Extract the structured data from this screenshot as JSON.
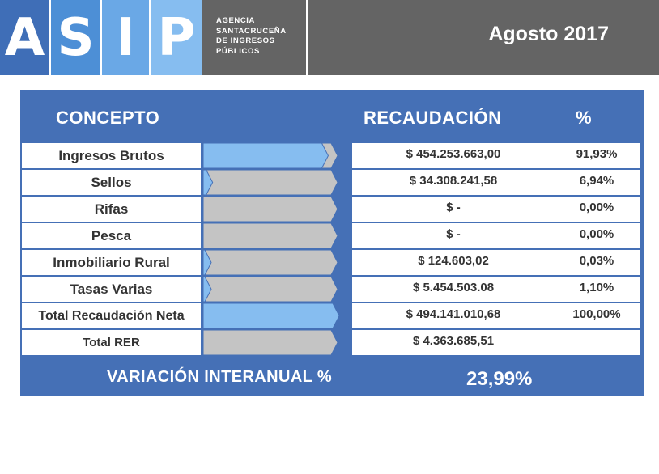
{
  "header": {
    "logo_letters": [
      "A",
      "S",
      "I",
      "P"
    ],
    "logo_colors": [
      "#3f6eb7",
      "#4d8fd6",
      "#6aa8e6",
      "#86bdf0"
    ],
    "agency_lines": [
      "AGENCIA",
      "SANTACRUCEÑA",
      "DE INGRESOS",
      "PÚBLICOS"
    ],
    "period": "Agosto 2017"
  },
  "colors": {
    "panel_blue": "#4570b6",
    "bar_blue": "#86bdf0",
    "bar_gray": "#c4c4c4",
    "header_gray": "#646464"
  },
  "chart_data": {
    "type": "table",
    "columns": [
      "CONCEPTO",
      "RECAUDACIÓN",
      "%"
    ],
    "rows": [
      {
        "concepto": "Ingresos Brutos",
        "recaudacion": "$ 454.253.663,00",
        "pct": "91,93%",
        "share": 91.93
      },
      {
        "concepto": "Sellos",
        "recaudacion": "$ 34.308.241,58",
        "pct": "6,94%",
        "share": 6.94
      },
      {
        "concepto": "Rifas",
        "recaudacion": "$ -",
        "pct": "0,00%",
        "share": 0
      },
      {
        "concepto": "Pesca",
        "recaudacion": "$ -",
        "pct": "0,00%",
        "share": 0
      },
      {
        "concepto": "Inmobiliario Rural",
        "recaudacion": "$ 124.603,02",
        "pct": "0,03%",
        "share": 0.03
      },
      {
        "concepto": "Tasas Varias",
        "recaudacion": "$ 5.454.503.08",
        "pct": "1,10%",
        "share": 1.1
      },
      {
        "concepto": "Total Recaudación Neta",
        "recaudacion": "$ 494.141.010,68",
        "pct": "100,00%",
        "share": 100
      },
      {
        "concepto": "Total RER",
        "recaudacion": "$ 4.363.685,51",
        "pct": "",
        "share": 0
      }
    ],
    "footer": {
      "label": "VARIACIÓN INTERANUAL %",
      "value": "23,99%"
    }
  }
}
